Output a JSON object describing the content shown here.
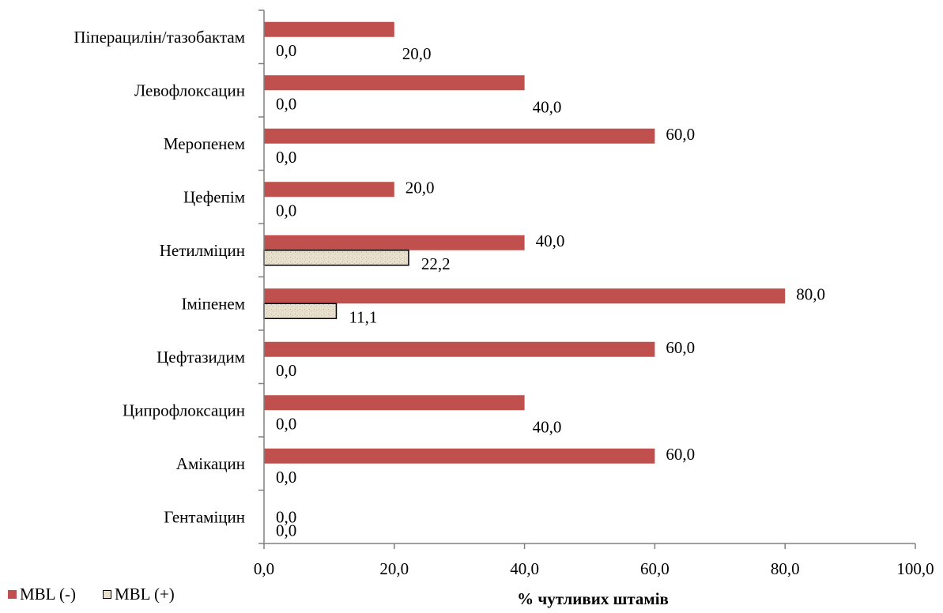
{
  "chart_data": {
    "type": "bar",
    "orientation": "horizontal",
    "categories": [
      "Піперацилін/тазобактам",
      "Левофлоксацин",
      "Меропенем",
      "Цефепім",
      "Нетилміцин",
      "Іміпенем",
      "Цефтазидим",
      "Ципрофлоксацин",
      "Амікацин",
      "Гентаміцин"
    ],
    "series": [
      {
        "name": "MBL (-)",
        "values": [
          20.0,
          40.0,
          60.0,
          20.0,
          40.0,
          80.0,
          60.0,
          40.0,
          60.0,
          0.0
        ],
        "labels": [
          "20,0",
          "40,0",
          "60,0",
          "20,0",
          "40,0",
          "80,0",
          "60,0",
          "40,0",
          "60,0",
          "0,0"
        ],
        "color": "#c0504d"
      },
      {
        "name": "MBL (+)",
        "values": [
          0.0,
          0.0,
          0.0,
          0.0,
          22.2,
          11.1,
          0.0,
          0.0,
          0.0,
          0.0
        ],
        "labels": [
          "0,0",
          "0,0",
          "0,0",
          "0,0",
          "22,2",
          "11,1",
          "0,0",
          "0,0",
          "0,0",
          "0,0"
        ],
        "color": "#e8e0cc"
      }
    ],
    "xlabel": "% чутливих штамів",
    "xlim": [
      0,
      100
    ],
    "xticks": [
      "0,0",
      "20,0",
      "40,0",
      "60,0",
      "80,0",
      "100,0"
    ],
    "grid": false,
    "legend_position": "bottom-left"
  }
}
